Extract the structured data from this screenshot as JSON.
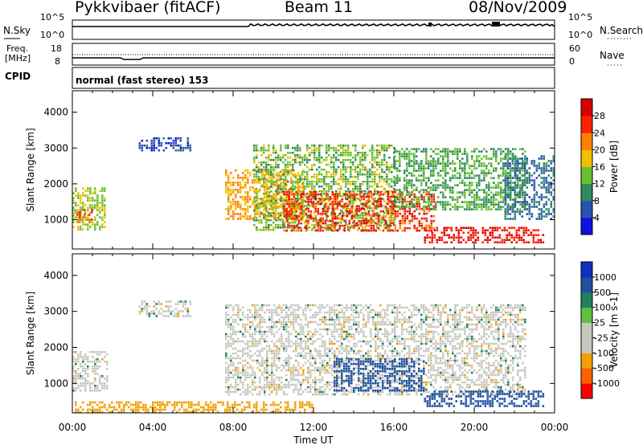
{
  "header": {
    "station": "Pykkvibaer (fitACF)",
    "beam": "Beam 11",
    "date": "08/Nov/2009"
  },
  "top_panel": {
    "left_label": "N.Sky",
    "right_label": "N.Search",
    "left_ticks": [
      "10^5",
      "10^0"
    ],
    "right_ticks": [
      "10^5",
      "10^0"
    ]
  },
  "freq_panel": {
    "left_label_1": "Freq.",
    "left_label_2": "[MHz]",
    "right_label": "Nave",
    "left_ticks": [
      "18",
      "8"
    ],
    "right_ticks": [
      "60",
      "0"
    ]
  },
  "cpid_panel": {
    "label": "CPID",
    "text": "normal (fast stereo) 153"
  },
  "chart_data": [
    {
      "type": "heatmap",
      "name": "Power",
      "ylabel": "Slant Range [km]",
      "xlabel": "Time UT",
      "ylim": [
        180,
        4600
      ],
      "xlim": [
        0,
        24
      ],
      "yticks": [
        1000,
        2000,
        3000,
        4000
      ],
      "colorbar_label": "Power [dB]",
      "colorbar_ticks": [
        "4",
        "8",
        "12",
        "16",
        "20",
        "24",
        "28"
      ],
      "colorbar_colors": [
        "#1010e0",
        "#2a50b0",
        "#2e8a5a",
        "#66c030",
        "#f0c000",
        "#ff8000",
        "#ff2000",
        "#d80000"
      ],
      "regions": [
        {
          "t0": 0.0,
          "t1": 1.6,
          "r0": 700,
          "r1": 1900,
          "level": 16
        },
        {
          "t0": 0.2,
          "t1": 1.0,
          "r0": 900,
          "r1": 1300,
          "level": 24
        },
        {
          "t0": 3.3,
          "t1": 5.9,
          "r0": 2900,
          "r1": 3300,
          "level": 6
        },
        {
          "t0": 7.6,
          "t1": 11.5,
          "r0": 1000,
          "r1": 2400,
          "level": 20
        },
        {
          "t0": 9.0,
          "t1": 16.0,
          "r0": 700,
          "r1": 3100,
          "level": 14
        },
        {
          "t0": 10.5,
          "t1": 18.0,
          "r0": 700,
          "r1": 1800,
          "level": 26
        },
        {
          "t0": 16.0,
          "t1": 22.5,
          "r0": 1300,
          "r1": 3000,
          "level": 12
        },
        {
          "t0": 17.5,
          "t1": 23.5,
          "r0": 350,
          "r1": 800,
          "level": 28
        },
        {
          "t0": 21.5,
          "t1": 24.0,
          "r0": 1000,
          "r1": 2800,
          "level": 8
        }
      ]
    },
    {
      "type": "heatmap",
      "name": "Velocity",
      "ylabel": "Slant Range [km]",
      "xlabel": "Time UT",
      "ylim": [
        180,
        4600
      ],
      "xlim": [
        0,
        24
      ],
      "yticks": [
        1000,
        2000,
        3000,
        4000
      ],
      "xticks": [
        "00:00",
        "04:00",
        "08:00",
        "12:00",
        "16:00",
        "20:00",
        "00:00"
      ],
      "colorbar_label": "Velocity [m s-1]",
      "colorbar_ticks": [
        "1000",
        "500",
        "100",
        "25",
        "-25",
        "-100",
        "-500",
        "-1000"
      ],
      "colorbar_colors": [
        "#1030c0",
        "#2050a0",
        "#208060",
        "#60c040",
        "#c8c8c0",
        "#c8c8c0",
        "#f0a000",
        "#ff6000",
        "#ff0000"
      ],
      "regions": [
        {
          "t0": 0.0,
          "t1": 1.8,
          "r0": 800,
          "r1": 1900,
          "value": 0
        },
        {
          "t0": 3.3,
          "t1": 5.9,
          "r0": 2850,
          "r1": 3300,
          "value": 0
        },
        {
          "t0": 7.6,
          "t1": 22.5,
          "r0": 700,
          "r1": 3200,
          "value": 0
        },
        {
          "t0": 13.0,
          "t1": 17.5,
          "r0": 800,
          "r1": 1700,
          "value": 200
        },
        {
          "t0": 17.5,
          "t1": 23.5,
          "r0": 350,
          "r1": 800,
          "value": 150
        },
        {
          "t0": 0.0,
          "t1": 12.0,
          "r0": 180,
          "r1": 500,
          "value": -60
        }
      ]
    }
  ]
}
